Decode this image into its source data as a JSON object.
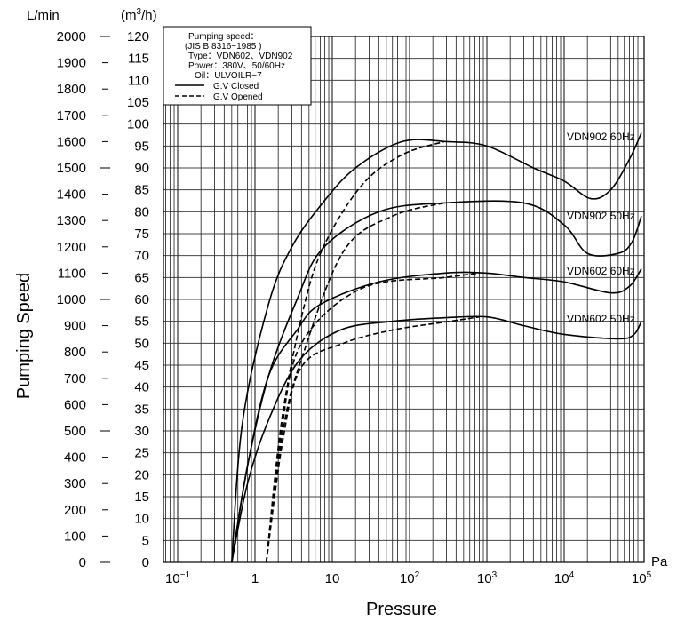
{
  "chart_data": {
    "type": "line",
    "title": "",
    "xlabel": "Pressure",
    "ylabel": "Pumping Speed",
    "x_unit": "Pa",
    "x_scale": "log",
    "xlim": [
      0.066,
      100000
    ],
    "ylim": [
      0,
      120
    ],
    "y_left_unit": "L/min",
    "y_right_unit_base": "(m",
    "y_right_unit_sup": "3",
    "y_right_unit_tail": "/h)",
    "y_ticks_m3h": [
      0,
      5,
      10,
      15,
      20,
      25,
      30,
      35,
      40,
      45,
      50,
      55,
      60,
      65,
      70,
      75,
      80,
      85,
      90,
      95,
      100,
      105,
      110,
      115,
      120
    ],
    "y_ticks_lmin": [
      0,
      100,
      200,
      300,
      400,
      500,
      600,
      700,
      800,
      900,
      1000,
      1100,
      1200,
      1300,
      1400,
      1500,
      1600,
      1700,
      1800,
      1900,
      2000
    ],
    "x_ticks": [
      {
        "value": 0.1,
        "base": "10",
        "sup": "−1"
      },
      {
        "value": 1,
        "base": "1",
        "sup": ""
      },
      {
        "value": 10,
        "base": "10",
        "sup": ""
      },
      {
        "value": 100,
        "base": "10",
        "sup": "2"
      },
      {
        "value": 1000,
        "base": "10",
        "sup": "3"
      },
      {
        "value": 10000,
        "base": "10",
        "sup": "4"
      },
      {
        "value": 100000,
        "base": "10",
        "sup": "5"
      }
    ],
    "grid": true,
    "legend": {
      "position": "top-left",
      "lines": [
        "Pumping speed：",
        "(JIS B 8316−1985 )",
        "Type：VDN602、VDN902",
        "Power：380V、50/60Hz",
        "Oil：ULVOILR−7"
      ],
      "entries": [
        {
          "label": "G.V Closed",
          "style": "solid"
        },
        {
          "label": "G.V Opened",
          "style": "dashed"
        }
      ]
    },
    "series": [
      {
        "name": "VDN902 60Hz",
        "style": "solid",
        "label": "VDN902  60Hz",
        "x": [
          0.5,
          0.69,
          1.5,
          3,
          7.5,
          20,
          80,
          300,
          1000,
          4000,
          10000,
          22000,
          40000,
          70000,
          100000
        ],
        "y": [
          0,
          32,
          59,
          72,
          82,
          90,
          96,
          96,
          95,
          90,
          87,
          83,
          85,
          92,
          98
        ]
      },
      {
        "name": "VDN902 60Hz G.V Opened",
        "style": "dashed",
        "x": [
          1.4,
          2.2,
          4,
          7.5,
          24,
          80,
          280
        ],
        "y": [
          0,
          32,
          56,
          71.6,
          86,
          93,
          96
        ]
      },
      {
        "name": "VDN902 50Hz",
        "style": "solid",
        "label": "VDN902  50Hz",
        "x": [
          0.5,
          0.8,
          1.5,
          3.5,
          7.5,
          40,
          280,
          3000,
          10000,
          20000,
          50000,
          75000,
          100000
        ],
        "y": [
          0,
          22,
          42.6,
          60,
          71.6,
          80,
          82,
          82,
          77,
          70.5,
          70.5,
          73,
          79
        ]
      },
      {
        "name": "VDN902 50Hz G.V Opened",
        "style": "dashed",
        "x": [
          1.4,
          2.3,
          4.1,
          14,
          60,
          280
        ],
        "y": [
          0,
          30,
          47,
          71,
          79,
          82
        ]
      },
      {
        "name": "VDN602 60Hz",
        "style": "solid",
        "label": "VDN602  60Hz",
        "x": [
          0.5,
          0.8,
          1.5,
          3.5,
          6.9,
          40,
          280,
          1000,
          3000,
          10000,
          40000,
          70000,
          100000
        ],
        "y": [
          0,
          22,
          42.6,
          53,
          58.8,
          64,
          66,
          66,
          65,
          64,
          61.5,
          63,
          67
        ]
      },
      {
        "name": "VDN602 60Hz G.V Opened",
        "style": "dashed",
        "x": [
          1.4,
          2.2,
          4,
          24,
          280,
          800
        ],
        "y": [
          0,
          30,
          50,
          62.5,
          65,
          66
        ]
      },
      {
        "name": "VDN602 50Hz",
        "style": "solid",
        "label": "VDN602  50Hz",
        "x": [
          0.5,
          0.8,
          1.5,
          3.7,
          12.7,
          60,
          280,
          1000,
          3000,
          10000,
          50000,
          80000,
          100000
        ],
        "y": [
          0,
          18,
          32.5,
          46,
          53,
          55,
          55.8,
          56,
          54,
          52,
          51,
          52,
          55
        ]
      },
      {
        "name": "VDN602 50Hz G.V Opened",
        "style": "dashed",
        "x": [
          1.4,
          2.3,
          4,
          14,
          60,
          280,
          800
        ],
        "y": [
          0,
          28,
          44.6,
          50,
          53,
          54.8,
          56
        ]
      }
    ]
  }
}
